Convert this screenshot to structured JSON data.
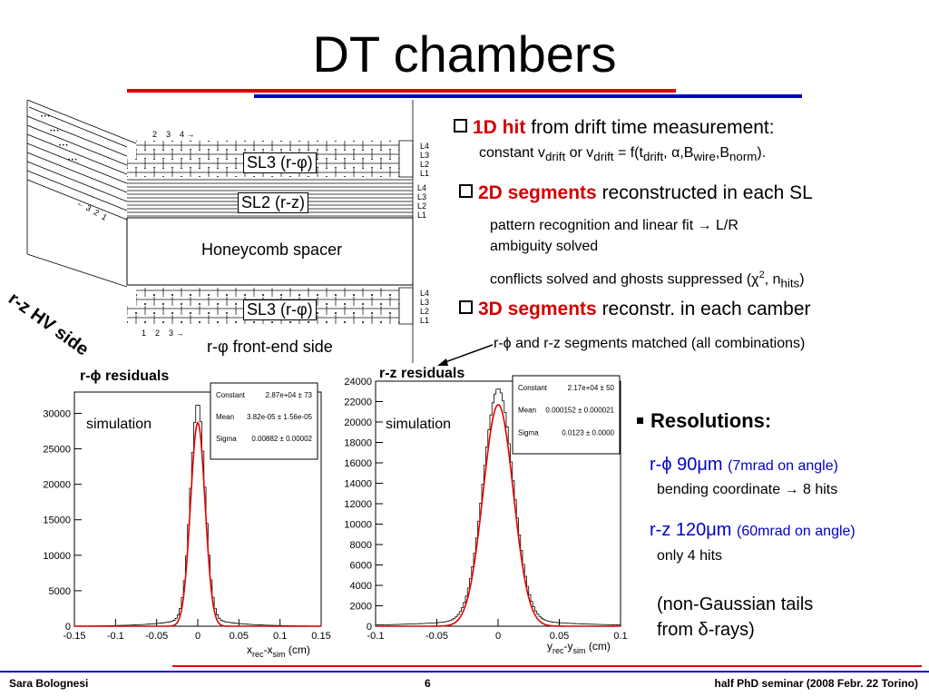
{
  "slide": {
    "title": "DT chambers",
    "footer": {
      "author": "Sara Bolognesi",
      "page": "6",
      "event": "half PhD seminar (2008 Febr. 22 Torino)"
    },
    "colors": {
      "red": "#e00000",
      "blue": "#0000c8",
      "fit": "#e00000"
    }
  },
  "diagram": {
    "sl3_top": "SL3 (r-φ)",
    "sl2": "SL2 (r-z)",
    "spacer": "Honeycomb spacer",
    "sl3_bottom": "SL3 (r-φ)",
    "hv_side": "r-z HV side",
    "fe_side": "r-φ front-end side",
    "layers_top": [
      "L4",
      "L3",
      "L2",
      "L1"
    ],
    "layers_mid": [
      "L4",
      "L3",
      "L2",
      "L1"
    ],
    "layers_bot": [
      "L4",
      "L3",
      "L2",
      "L1"
    ],
    "num_top": "2    3    4 →",
    "num_left": "← 3  2  1",
    "num_bot": "1    2    3 →"
  },
  "bullets": {
    "b1_key": "1D hit",
    "b1_rest": "from drift time measurement:",
    "b1_sub_a": "constant v",
    "b1_sub_drift1": "drift",
    "b1_sub_b": " or   v",
    "b1_sub_drift2": "drift",
    "b1_sub_c": " = f(t",
    "b1_sub_drift3": "drift",
    "b1_sub_d": ", α,B",
    "b1_sub_wire": "wire",
    "b1_sub_e": ",B",
    "b1_sub_norm": "norm",
    "b1_sub_f": ").",
    "b2_key": "2D segments",
    "b2_rest": "reconstructed in each SL",
    "b2_sub1": "pattern recognition and linear fit → L/R",
    "b2_sub1b": "ambiguity solved",
    "b2_sub2a": "conflicts solved and ghosts suppressed (χ",
    "b2_sub2sup": "2",
    "b2_sub2b": ", n",
    "b2_sub2hits": "hits",
    "b2_sub2c": ")",
    "b3_key": "3D segments",
    "b3_rest": "reconstr. in each camber",
    "b3_sub": "r-ϕ and r-z segments matched (all combinations)"
  },
  "resolutions": {
    "heading": "Resolutions:",
    "rphi_main": "r-ϕ 90μm",
    "rphi_note": "(7mrad on angle)",
    "rphi_sub": "bending coordinate → 8 hits",
    "rz_main": "r-z 120μm",
    "rz_note": "(60mrad on angle)",
    "rz_sub": "only 4 hits",
    "tails1": "(non-Gaussian tails",
    "tails2": "from δ-rays)"
  },
  "chart_data": [
    {
      "type": "histogram",
      "title": "r-ϕ residuals",
      "annotation": "simulation",
      "xlabel": "x_rec-x_sim (cm)",
      "xlim": [
        -0.15,
        0.15
      ],
      "ylim": [
        0,
        33000
      ],
      "xticks": [
        "-0.15",
        "-0.1",
        "-0.05",
        "0",
        "0.05",
        "0.1",
        "0.15"
      ],
      "yticks": [
        "0",
        "5000",
        "10000",
        "15000",
        "20000",
        "25000",
        "30000"
      ],
      "fit": {
        "function": "gaussian",
        "constant": 28700,
        "mean": 3.82e-05,
        "sigma": 0.00882
      },
      "stats": [
        {
          "label": "Constant",
          "value": "2.87e+04 ± 73"
        },
        {
          "label": "Mean",
          "value": "3.82e-05 ± 1.56e-05"
        },
        {
          "label": "Sigma",
          "value": "0.00882 ± 0.00002"
        }
      ],
      "histogram": {
        "peak": 31500,
        "tail_fraction": 0.05
      }
    },
    {
      "type": "histogram",
      "title": "r-z residuals",
      "annotation": "simulation",
      "xlabel": "y_rec-y_sim (cm)",
      "xlim": [
        -0.1,
        0.1
      ],
      "ylim": [
        0,
        24000
      ],
      "xticks": [
        "-0.1",
        "-0.05",
        "0",
        "0.05",
        "0.1"
      ],
      "yticks": [
        "0",
        "2000",
        "4000",
        "6000",
        "8000",
        "10000",
        "12000",
        "14000",
        "16000",
        "18000",
        "20000",
        "22000",
        "24000"
      ],
      "fit": {
        "function": "gaussian",
        "constant": 21700,
        "mean": 0.000152,
        "sigma": 0.0123
      },
      "stats": [
        {
          "label": "Constant",
          "value": "2.17e+04 ± 50"
        },
        {
          "label": "Mean",
          "value": "0.000152 ± 0.000021"
        },
        {
          "label": "Sigma",
          "value": "0.0123 ± 0.0000"
        }
      ],
      "histogram": {
        "peak": 23300,
        "tail_fraction": 0.04
      }
    }
  ]
}
